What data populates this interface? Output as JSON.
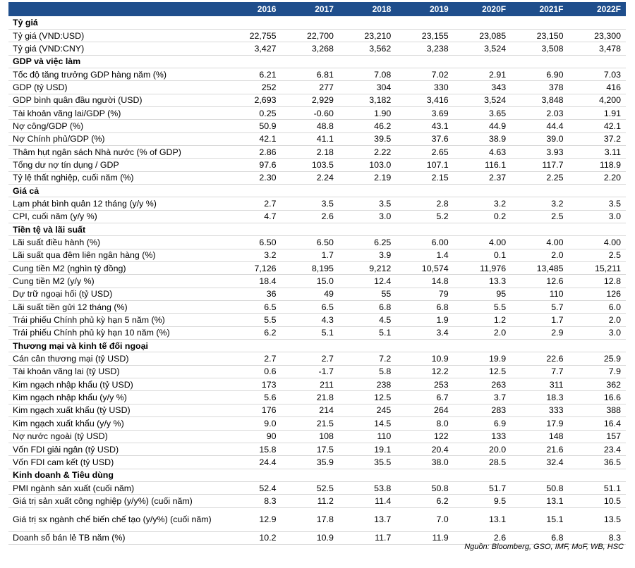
{
  "headers": [
    "",
    "2016",
    "2017",
    "2018",
    "2019",
    "2020F",
    "2021F",
    "2022F"
  ],
  "rows": [
    {
      "type": "section",
      "label": "Tỷ giá"
    },
    {
      "label": "Tỷ giá (VND:USD)",
      "values": [
        "22,755",
        "22,700",
        "23,210",
        "23,155",
        "23,085",
        "23,150",
        "23,300"
      ]
    },
    {
      "label": "Tỷ giá (VND:CNY)",
      "values": [
        "3,427",
        "3,268",
        "3,562",
        "3,238",
        "3,524",
        "3,508",
        "3,478"
      ]
    },
    {
      "type": "section",
      "label": "GDP và việc làm"
    },
    {
      "label": "Tốc độ tăng trưởng GDP hàng năm (%)",
      "values": [
        "6.21",
        "6.81",
        "7.08",
        "7.02",
        "2.91",
        "6.90",
        "7.03"
      ]
    },
    {
      "label": "GDP (tỷ USD)",
      "values": [
        "252",
        "277",
        "304",
        "330",
        "343",
        "378",
        "416"
      ]
    },
    {
      "label": "GDP bình quân đầu người (USD)",
      "values": [
        "2,693",
        "2,929",
        "3,182",
        "3,416",
        "3,524",
        "3,848",
        "4,200"
      ]
    },
    {
      "label": "Tài khoản vãng lai/GDP (%)",
      "values": [
        "0.25",
        "-0.60",
        "1.90",
        "3.69",
        "3.65",
        "2.03",
        "1.91"
      ]
    },
    {
      "label": "Nợ công/GDP (%)",
      "values": [
        "50.9",
        "48.8",
        "46.2",
        "43.1",
        "44.9",
        "44.4",
        "42.1"
      ]
    },
    {
      "label": "Nợ Chính phủ/GDP (%)",
      "values": [
        "42.1",
        "41.1",
        "39.5",
        "37.6",
        "38.9",
        "39.0",
        "37.2"
      ]
    },
    {
      "label": "Thâm hụt ngân sách Nhà nước (% of GDP)",
      "values": [
        "2.86",
        "2.18",
        "2.22",
        "2.65",
        "4.63",
        "3.93",
        "3.11"
      ]
    },
    {
      "label": "Tổng dư nợ tín dụng / GDP",
      "values": [
        "97.6",
        "103.5",
        "103.0",
        "107.1",
        "116.1",
        "117.7",
        "118.9"
      ]
    },
    {
      "label": "Tỷ lệ thất nghiệp, cuối năm (%)",
      "values": [
        "2.30",
        "2.24",
        "2.19",
        "2.15",
        "2.37",
        "2.25",
        "2.20"
      ]
    },
    {
      "type": "section",
      "label": "Giá cả"
    },
    {
      "label": "Lạm phát bình quân 12 tháng (y/y %)",
      "values": [
        "2.7",
        "3.5",
        "3.5",
        "2.8",
        "3.2",
        "3.2",
        "3.5"
      ]
    },
    {
      "label": "CPI, cuối năm (y/y %)",
      "values": [
        "4.7",
        "2.6",
        "3.0",
        "5.2",
        "0.2",
        "2.5",
        "3.0"
      ]
    },
    {
      "type": "section",
      "label": "Tiền tệ và lãi suất"
    },
    {
      "label": "Lãi suất điều hành (%)",
      "values": [
        "6.50",
        "6.50",
        "6.25",
        "6.00",
        "4.00",
        "4.00",
        "4.00"
      ]
    },
    {
      "label": "Lãi suất qua đêm liên ngân hàng (%)",
      "values": [
        "3.2",
        "1.7",
        "3.9",
        "1.4",
        "0.1",
        "2.0",
        "2.5"
      ]
    },
    {
      "label": "Cung tiền M2 (nghìn tỷ đồng)",
      "values": [
        "7,126",
        "8,195",
        "9,212",
        "10,574",
        "11,976",
        "13,485",
        "15,211"
      ]
    },
    {
      "label": "Cung tiền M2 (y/y %)",
      "values": [
        "18.4",
        "15.0",
        "12.4",
        "14.8",
        "13.3",
        "12.6",
        "12.8"
      ]
    },
    {
      "label": "Dự trữ ngoại hối (tỷ USD)",
      "values": [
        "36",
        "49",
        "55",
        "79",
        "95",
        "110",
        "126"
      ]
    },
    {
      "label": "Lãi suất tiền gửi 12 tháng (%)",
      "values": [
        "6.5",
        "6.5",
        "6.8",
        "6.8",
        "5.5",
        "5.7",
        "6.0"
      ]
    },
    {
      "label": "Trái phiếu Chính phủ kỳ hạn 5 năm (%)",
      "values": [
        "5.5",
        "4.3",
        "4.5",
        "1.9",
        "1.2",
        "1.7",
        "2.0"
      ]
    },
    {
      "label": "Trái phiếu Chính phủ kỳ hạn 10 năm (%)",
      "values": [
        "6.2",
        "5.1",
        "5.1",
        "3.4",
        "2.0",
        "2.9",
        "3.0"
      ]
    },
    {
      "type": "section",
      "label": "Thương mại và kinh tế đối ngoại"
    },
    {
      "label": "Cán cân thương mại (tỷ USD)",
      "values": [
        "2.7",
        "2.7",
        "7.2",
        "10.9",
        "19.9",
        "22.6",
        "25.9"
      ]
    },
    {
      "label": "Tài khoản vãng lai (tỷ USD)",
      "values": [
        "0.6",
        "-1.7",
        "5.8",
        "12.2",
        "12.5",
        "7.7",
        "7.9"
      ]
    },
    {
      "label": "Kim ngạch nhập khẩu (tỷ USD)",
      "values": [
        "173",
        "211",
        "238",
        "253",
        "263",
        "311",
        "362"
      ]
    },
    {
      "label": "Kim ngạch nhập khẩu (y/y %)",
      "values": [
        "5.6",
        "21.8",
        "12.5",
        "6.7",
        "3.7",
        "18.3",
        "16.6"
      ]
    },
    {
      "label": "Kim ngạch xuất khẩu (tỷ USD)",
      "values": [
        "176",
        "214",
        "245",
        "264",
        "283",
        "333",
        "388"
      ]
    },
    {
      "label": "Kim ngạch xuất khẩu (y/y %)",
      "values": [
        "9.0",
        "21.5",
        "14.5",
        "8.0",
        "6.9",
        "17.9",
        "16.4"
      ]
    },
    {
      "label": "Nợ nước ngoài (tỷ USD)",
      "values": [
        "90",
        "108",
        "110",
        "122",
        "133",
        "148",
        "157"
      ]
    },
    {
      "label": "Vốn FDI giải ngân (tỷ USD)",
      "values": [
        "15.8",
        "17.5",
        "19.1",
        "20.4",
        "20.0",
        "21.6",
        "23.4"
      ]
    },
    {
      "label": "Vốn FDI cam kết (tỷ USD)",
      "values": [
        "24.4",
        "35.9",
        "35.5",
        "38.0",
        "28.5",
        "32.4",
        "36.5"
      ]
    },
    {
      "type": "section",
      "label": "Kinh doanh & Tiêu dùng"
    },
    {
      "label": "PMI ngành sản xuất (cuối năm)",
      "values": [
        "52.4",
        "52.5",
        "53.8",
        "50.8",
        "51.7",
        "50.8",
        "51.1"
      ]
    },
    {
      "label": "Giá trị sản xuất công nghiệp (y/y%) (cuối năm)",
      "values": [
        "8.3",
        "11.2",
        "11.4",
        "6.2",
        "9.5",
        "13.1",
        "10.5"
      ]
    },
    {
      "label": "Giá trị sx ngành chế biến chế tạo (y/y%) (cuối năm)",
      "values": [
        "12.9",
        "17.8",
        "13.7",
        "7.0",
        "13.1",
        "15.1",
        "13.5"
      ],
      "tall": true
    },
    {
      "label": "Doanh số bán lẻ TB năm (%)",
      "values": [
        "10.2",
        "10.9",
        "11.7",
        "11.9",
        "2.6",
        "6.8",
        "8.3"
      ]
    }
  ],
  "source": "Nguồn: Bloomberg, GSO, IMF, MoF, WB, HSC"
}
